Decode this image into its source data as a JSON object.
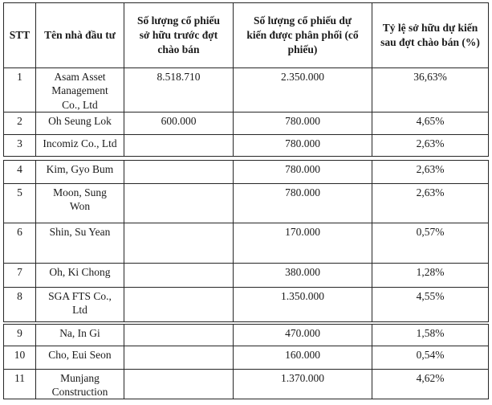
{
  "document": {
    "description": "Scanned table of investors and expected share distribution",
    "colors": {
      "border": "#262626",
      "text": "#1a1a1a",
      "background": "#ffffff"
    },
    "table": {
      "headers": {
        "stt": "STT",
        "name": "Tên nhà đầu tư",
        "shares_before": "Số lượng cổ phiếu\nsở hữu trước đợt\nchào bán",
        "shares_allocated": "Số lượng cổ phiếu dự\nkiến được phân phối (cổ\nphiếu)",
        "ratio_after": "Tỷ lệ sở hữu dự kiến\nsau đợt chào bán (%)"
      },
      "rows": [
        {
          "stt": "1",
          "name": "Asam Asset\nManagement\nCo., Ltd",
          "before": "8.518.710",
          "allocated": "2.350.000",
          "ratio": "36,63%"
        },
        {
          "stt": "2",
          "name": "Oh Seung Lok",
          "before": "600.000",
          "allocated": "780.000",
          "ratio": "4,65%"
        },
        {
          "stt": "3",
          "name": "Incomiz Co., Ltd",
          "before": "",
          "allocated": "780.000",
          "ratio": "2,63%"
        },
        {
          "stt": "4",
          "name": "Kim, Gyo Bum",
          "before": "",
          "allocated": "780.000",
          "ratio": "2,63%"
        },
        {
          "stt": "5",
          "name": "Moon, Sung\nWon",
          "before": "",
          "allocated": "780.000",
          "ratio": "2,63%"
        },
        {
          "stt": "6",
          "name": "Shin, Su Yean",
          "before": "",
          "allocated": "170.000",
          "ratio": "0,57%"
        },
        {
          "stt": "7",
          "name": "Oh, Ki Chong",
          "before": "",
          "allocated": "380.000",
          "ratio": "1,28%"
        },
        {
          "stt": "8",
          "name": "SGA FTS Co.,\nLtd",
          "before": "",
          "allocated": "1.350.000",
          "ratio": "4,55%"
        },
        {
          "stt": "9",
          "name": "Na, In Gi",
          "before": "",
          "allocated": "470.000",
          "ratio": "1,58%"
        },
        {
          "stt": "10",
          "name": "Cho, Eui Seon",
          "before": "",
          "allocated": "160.000",
          "ratio": "0,54%"
        },
        {
          "stt": "11",
          "name": "Munjang\nConstruction",
          "before": "",
          "allocated": "1.370.000",
          "ratio": "4,62%"
        }
      ]
    }
  }
}
